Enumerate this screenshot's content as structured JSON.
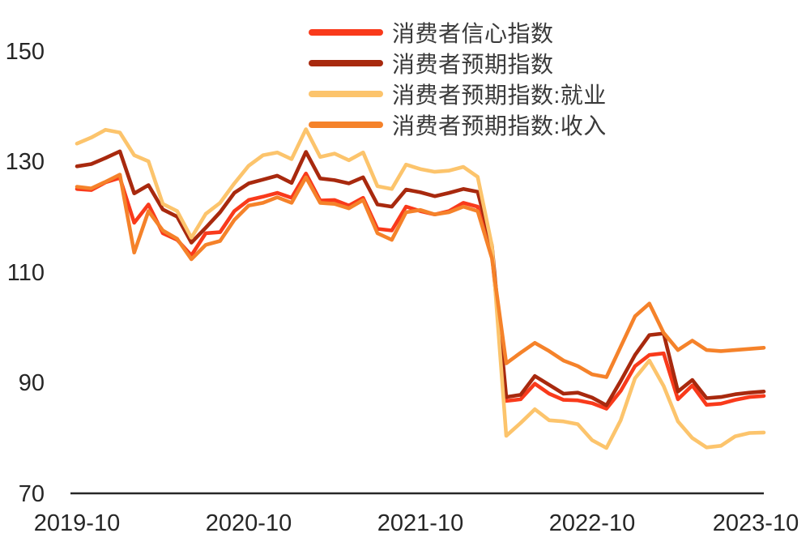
{
  "chart_data": {
    "type": "line",
    "title": "",
    "xlabel": "",
    "ylabel": "",
    "ylim": [
      70,
      150
    ],
    "grid": false,
    "legend_position": "top-center",
    "y_ticks": [
      150,
      130,
      110,
      90,
      70
    ],
    "x_tick_labels": [
      "2019-10",
      "2020-10",
      "2021-10",
      "2022-10",
      "2023-10"
    ],
    "x_tick_month_indices": [
      0,
      12,
      24,
      36,
      48
    ],
    "x": [
      "2019-10",
      "2019-11",
      "2019-12",
      "2020-01",
      "2020-02",
      "2020-03",
      "2020-04",
      "2020-05",
      "2020-06",
      "2020-07",
      "2020-08",
      "2020-09",
      "2020-10",
      "2020-11",
      "2020-12",
      "2021-01",
      "2021-02",
      "2021-03",
      "2021-04",
      "2021-05",
      "2021-06",
      "2021-07",
      "2021-08",
      "2021-09",
      "2021-10",
      "2021-11",
      "2021-12",
      "2022-01",
      "2022-02",
      "2022-03",
      "2022-04",
      "2022-05",
      "2022-06",
      "2022-07",
      "2022-08",
      "2022-09",
      "2022-10",
      "2022-11",
      "2022-12",
      "2023-01",
      "2023-02",
      "2023-03",
      "2023-04",
      "2023-05",
      "2023-06",
      "2023-07",
      "2023-08",
      "2023-09",
      "2023-10"
    ],
    "series": [
      {
        "name": "消费者信心指数",
        "color": "#F93A1B",
        "values": [
          125.0,
          124.8,
          126.2,
          127.0,
          118.9,
          122.2,
          117.0,
          115.8,
          113.0,
          117.0,
          117.2,
          121.0,
          123.0,
          123.6,
          124.3,
          123.4,
          127.8,
          122.9,
          123.0,
          122.0,
          123.4,
          117.8,
          117.5,
          121.8,
          121.0,
          120.4,
          121.0,
          122.5,
          121.8,
          113.2,
          86.7,
          87.0,
          89.8,
          88.0,
          86.9,
          86.8,
          86.3,
          85.3,
          88.5,
          93.0,
          95.0,
          95.3,
          87.0,
          89.5,
          86.0,
          86.2,
          86.9,
          87.4,
          87.6
        ]
      },
      {
        "name": "消费者预期指数",
        "color": "#A8290E",
        "values": [
          129.1,
          129.5,
          130.6,
          131.8,
          124.2,
          125.7,
          121.3,
          120.0,
          115.3,
          118.0,
          120.8,
          124.3,
          126.0,
          126.7,
          127.4,
          126.1,
          131.7,
          126.9,
          126.6,
          126.0,
          127.1,
          122.2,
          121.8,
          124.9,
          124.4,
          123.7,
          124.3,
          125.0,
          124.5,
          114.8,
          87.4,
          87.8,
          91.2,
          89.6,
          88.0,
          88.2,
          87.3,
          85.9,
          90.3,
          95.0,
          98.6,
          98.9,
          88.4,
          90.5,
          87.2,
          87.4,
          87.9,
          88.2,
          88.4
        ]
      },
      {
        "name": "消费者预期指数:就业",
        "color": "#FCC46C",
        "values": [
          133.2,
          134.3,
          135.7,
          135.2,
          131.1,
          130.0,
          122.3,
          121.0,
          116.2,
          120.5,
          122.5,
          126.0,
          129.2,
          131.1,
          131.6,
          130.4,
          135.8,
          130.8,
          131.4,
          130.2,
          131.6,
          125.5,
          125.0,
          129.4,
          128.6,
          128.1,
          128.3,
          129.0,
          127.2,
          114.8,
          80.4,
          82.7,
          85.2,
          83.2,
          83.0,
          82.5,
          79.6,
          78.2,
          83.2,
          90.8,
          94.0,
          89.4,
          83.0,
          80.0,
          78.3,
          78.6,
          80.3,
          80.9,
          81.0
        ]
      },
      {
        "name": "消费者预期指数:收入",
        "color": "#F5822A",
        "values": [
          125.4,
          125.1,
          126.3,
          127.6,
          113.5,
          121.0,
          117.5,
          116.0,
          112.3,
          114.9,
          115.6,
          119.4,
          122.0,
          122.5,
          123.5,
          122.5,
          127.1,
          122.5,
          122.3,
          121.5,
          123.0,
          117.0,
          115.8,
          120.8,
          121.2,
          120.4,
          120.8,
          121.8,
          121.0,
          112.5,
          93.5,
          95.4,
          97.2,
          95.7,
          94.0,
          93.0,
          91.5,
          91.0,
          96.5,
          102.0,
          104.3,
          99.0,
          95.9,
          97.6,
          95.9,
          95.7,
          95.9,
          96.1,
          96.3
        ]
      }
    ]
  }
}
